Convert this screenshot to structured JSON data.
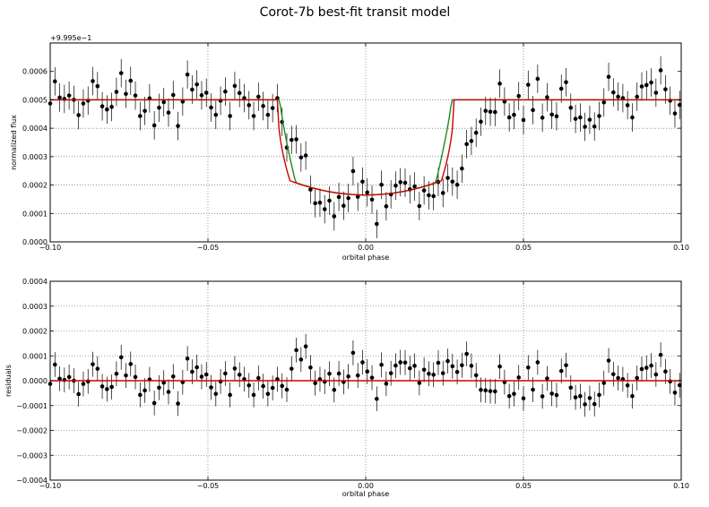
{
  "figure": {
    "title": "Corot-7b best-fit transit model",
    "offset_label": "+9.995e−1"
  },
  "colors": {
    "data": "#000000",
    "red_model": "#cc0000",
    "green_model": "#1f8a1f",
    "zero_line": "#cc0000",
    "grid": "#555555"
  },
  "chart_data": [
    {
      "type": "scatter",
      "title": "Corot-7b best-fit transit model",
      "xlabel": "orbital phase",
      "ylabel": "normalized flux",
      "offset": "+9.995e−1",
      "xlim": [
        -0.1,
        0.1
      ],
      "ylim": [
        0.0,
        0.0007
      ],
      "x_ticks": [
        -0.1,
        -0.05,
        0.0,
        0.05,
        0.1
      ],
      "x_tick_labels": [
        "−0.10",
        "−0.05",
        "0.00",
        "0.05",
        "0.10"
      ],
      "y_ticks": [
        0.0,
        0.0001,
        0.0002,
        0.0003,
        0.0004,
        0.0005,
        0.0006
      ],
      "y_tick_labels": [
        "0.0000",
        "0.0001",
        "0.0002",
        "0.0003",
        "0.0004",
        "0.0005",
        "0.0006"
      ],
      "grid": true,
      "model_params": {
        "baseline": 0.0005,
        "depth": 0.000335,
        "half_width": 0.028,
        "ingress": 0.004
      },
      "series": [
        {
          "type": "scatter",
          "x": [
            -0.1,
            -0.0985,
            -0.097,
            -0.0955,
            -0.094,
            -0.0925,
            -0.091,
            -0.0895,
            -0.088,
            -0.0865,
            -0.085,
            -0.0835,
            -0.082,
            -0.0805,
            -0.079,
            -0.0775,
            -0.076,
            -0.0745,
            -0.073,
            -0.0715,
            -0.07,
            -0.0685,
            -0.067,
            -0.0655,
            -0.064,
            -0.0625,
            -0.061,
            -0.0595,
            -0.058,
            -0.0565,
            -0.055,
            -0.0535,
            -0.052,
            -0.0505,
            -0.049,
            -0.0475,
            -0.046,
            -0.0445,
            -0.043,
            -0.0415,
            -0.04,
            -0.0385,
            -0.037,
            -0.0355,
            -0.034,
            -0.0325,
            -0.031,
            -0.0295,
            -0.028,
            -0.0265,
            -0.025,
            -0.0235,
            -0.022,
            -0.0205,
            -0.019,
            -0.0175,
            -0.016,
            -0.0145,
            -0.013,
            -0.0115,
            -0.01,
            -0.0085,
            -0.007,
            -0.0055,
            -0.004,
            -0.0025,
            -0.001,
            0.0005,
            0.002,
            0.0035,
            0.005,
            0.0065,
            0.008,
            0.0095,
            0.011,
            0.0125,
            0.014,
            0.0155,
            0.017,
            0.0185,
            0.02,
            0.0215,
            0.023,
            0.0245,
            0.026,
            0.0275,
            0.029,
            0.0305,
            0.032,
            0.0335,
            0.035,
            0.0365,
            0.038,
            0.0395,
            0.041,
            0.0425,
            0.044,
            0.0455,
            0.047,
            0.0485,
            0.05,
            0.0515,
            0.053,
            0.0545,
            0.056,
            0.0575,
            0.059,
            0.0605,
            0.062,
            0.0635,
            0.065,
            0.0665,
            0.068,
            0.0695,
            0.071,
            0.0725,
            0.074,
            0.0755,
            0.077,
            0.0785,
            0.08,
            0.0815,
            0.083,
            0.0845,
            0.086,
            0.0875,
            0.089,
            0.0905,
            0.092,
            0.0935,
            0.095,
            0.0965,
            0.098,
            0.0995
          ],
          "y": [
            0.000487,
            0.000565,
            0.000508,
            0.000503,
            0.000515,
            0.0005,
            0.000446,
            0.000487,
            0.000497,
            0.000566,
            0.000548,
            0.000477,
            0.000466,
            0.000475,
            0.000528,
            0.000594,
            0.000521,
            0.000567,
            0.000515,
            0.000443,
            0.000461,
            0.000505,
            0.00041,
            0.000472,
            0.000492,
            0.000455,
            0.000517,
            0.000408,
            0.000494,
            0.000589,
            0.000536,
            0.000554,
            0.000516,
            0.000525,
            0.000473,
            0.000447,
            0.000497,
            0.000529,
            0.000443,
            0.000549,
            0.000524,
            0.000506,
            0.000481,
            0.000443,
            0.000511,
            0.000478,
            0.000447,
            0.000471,
            0.000506,
            0.000422,
            0.000332,
            0.000359,
            0.000361,
            0.000297,
            0.000304,
            0.000184,
            0.000136,
            0.000138,
            0.000115,
            0.000145,
            9e-05,
            0.000158,
            0.000127,
            0.000154,
            0.000249,
            0.000159,
            0.000212,
            0.000174,
            0.000149,
            6.3e-05,
            0.000201,
            0.000125,
            0.000167,
            0.000198,
            0.00021,
            0.000208,
            0.000185,
            0.000195,
            0.000126,
            0.000181,
            0.000164,
            0.000161,
            0.000211,
            0.000172,
            0.000225,
            0.000212,
            0.000201,
            0.000258,
            0.000344,
            0.000355,
            0.000384,
            0.000423,
            0.000461,
            0.000458,
            0.000457,
            0.000557,
            0.000494,
            0.000438,
            0.000447,
            0.000513,
            0.000429,
            0.000553,
            0.000464,
            0.000574,
            0.000437,
            0.000509,
            0.000448,
            0.000442,
            0.000539,
            0.000562,
            0.000472,
            0.000433,
            0.000438,
            0.000405,
            0.00043,
            0.000406,
            0.000443,
            0.000491,
            0.000581,
            0.000526,
            0.000511,
            0.000506,
            0.000481,
            0.000438,
            0.000511,
            0.000547,
            0.000552,
            0.000561,
            0.000525,
            0.000604,
            0.000537,
            0.000497,
            0.000452,
            0.000482
          ],
          "yerr": 5e-05
        },
        {
          "type": "line",
          "name": "",
          "color": "#cc0000"
        },
        {
          "type": "line",
          "name": "",
          "color": "#1f8a1f"
        }
      ]
    },
    {
      "type": "scatter",
      "title": "",
      "xlabel": "orbital phase",
      "ylabel": "residuals",
      "xlim": [
        -0.1,
        0.1
      ],
      "ylim": [
        -0.0004,
        0.0004
      ],
      "x_ticks": [
        -0.1,
        -0.05,
        0.0,
        0.05,
        0.1
      ],
      "x_tick_labels": [
        "−0.10",
        "−0.05",
        "0.00",
        "0.05",
        "0.10"
      ],
      "y_ticks": [
        -0.0004,
        -0.0003,
        -0.0002,
        -0.0001,
        0.0,
        0.0001,
        0.0002,
        0.0003,
        0.0004
      ],
      "y_tick_labels": [
        "−0.0004",
        "−0.0003",
        "−0.0002",
        "−0.0001",
        "0.0000",
        "0.0001",
        "0.0002",
        "0.0003",
        "0.0004"
      ],
      "grid": true,
      "series": [
        {
          "type": "scatter",
          "x": [
            -0.1,
            -0.0985,
            -0.097,
            -0.0955,
            -0.094,
            -0.0925,
            -0.091,
            -0.0895,
            -0.088,
            -0.0865,
            -0.085,
            -0.0835,
            -0.082,
            -0.0805,
            -0.079,
            -0.0775,
            -0.076,
            -0.0745,
            -0.073,
            -0.0715,
            -0.07,
            -0.0685,
            -0.067,
            -0.0655,
            -0.064,
            -0.0625,
            -0.061,
            -0.0595,
            -0.058,
            -0.0565,
            -0.055,
            -0.0535,
            -0.052,
            -0.0505,
            -0.049,
            -0.0475,
            -0.046,
            -0.0445,
            -0.043,
            -0.0415,
            -0.04,
            -0.0385,
            -0.037,
            -0.0355,
            -0.034,
            -0.0325,
            -0.031,
            -0.0295,
            -0.028,
            -0.0265,
            -0.025,
            -0.0235,
            -0.022,
            -0.0205,
            -0.019,
            -0.0175,
            -0.016,
            -0.0145,
            -0.013,
            -0.0115,
            -0.01,
            -0.0085,
            -0.007,
            -0.0055,
            -0.004,
            -0.0025,
            -0.001,
            0.0005,
            0.002,
            0.0035,
            0.005,
            0.0065,
            0.008,
            0.0095,
            0.011,
            0.0125,
            0.014,
            0.0155,
            0.017,
            0.0185,
            0.02,
            0.0215,
            0.023,
            0.0245,
            0.026,
            0.0275,
            0.029,
            0.0305,
            0.032,
            0.0335,
            0.035,
            0.0365,
            0.038,
            0.0395,
            0.041,
            0.0425,
            0.044,
            0.0455,
            0.047,
            0.0485,
            0.05,
            0.0515,
            0.053,
            0.0545,
            0.056,
            0.0575,
            0.059,
            0.0605,
            0.062,
            0.0635,
            0.065,
            0.0665,
            0.068,
            0.0695,
            0.071,
            0.0725,
            0.074,
            0.0755,
            0.077,
            0.0785,
            0.08,
            0.0815,
            0.083,
            0.0845,
            0.086,
            0.0875,
            0.089,
            0.0905,
            0.092,
            0.0935,
            0.095,
            0.0965,
            0.098,
            0.0995
          ],
          "y": [
            -1.3e-05,
            6.5e-05,
            8e-06,
            3e-06,
            1.5e-05,
            0.0,
            -5.4e-05,
            -1.3e-05,
            -3e-06,
            6.6e-05,
            4.8e-05,
            -2.3e-05,
            -3.4e-05,
            -2.5e-05,
            2.8e-05,
            9.4e-05,
            2.1e-05,
            6.7e-05,
            1.5e-05,
            -5.7e-05,
            -3.9e-05,
            5e-06,
            -9e-05,
            -2.8e-05,
            -8e-06,
            -4.5e-05,
            1.7e-05,
            -9.2e-05,
            -6e-06,
            8.9e-05,
            3.6e-05,
            5.4e-05,
            1.6e-05,
            2.5e-05,
            -2.7e-05,
            -5.3e-05,
            -3e-06,
            2.9e-05,
            -5.7e-05,
            4.9e-05,
            2.4e-05,
            6e-06,
            -1.9e-05,
            -5.7e-05,
            1.1e-05,
            -2.2e-05,
            -5.3e-05,
            -2.9e-05,
            6e-06,
            -2.1e-05,
            -3.6e-05,
            4.8e-05,
            0.000123,
            8.5e-05,
            0.000138,
            5.3e-05,
            -1e-05,
            6e-06,
            -4e-06,
            2.8e-05,
            -3.7e-05,
            2.9e-05,
            -5e-06,
            1.7e-05,
            0.000112,
            2.1e-05,
            7.4e-05,
            3.7e-05,
            1.2e-05,
            -7.3e-05,
            6.4e-05,
            -1.2e-05,
            3e-05,
            6.1e-05,
            7.4e-05,
            7.3e-05,
            5e-05,
            6e-05,
            -9e-06,
            4.4e-05,
            2.8e-05,
            2.4e-05,
            7.2e-05,
            3e-05,
            7.9e-05,
            5.8e-05,
            3.5e-05,
            6.2e-05,
            0.000108,
            6e-05,
            2.2e-05,
            -3.7e-05,
            -3.9e-05,
            -4.2e-05,
            -4.3e-05,
            5.7e-05,
            -6e-06,
            -6.2e-05,
            -5.3e-05,
            1.3e-05,
            -7.1e-05,
            5.3e-05,
            -3.6e-05,
            7.4e-05,
            -6.3e-05,
            9e-06,
            -5.2e-05,
            -5.8e-05,
            3.9e-05,
            6.2e-05,
            -2.8e-05,
            -6.7e-05,
            -6.2e-05,
            -9.5e-05,
            -7e-05,
            -9.4e-05,
            -5.7e-05,
            -9e-06,
            8.1e-05,
            2.6e-05,
            1.1e-05,
            6e-06,
            -1.9e-05,
            -6.2e-05,
            1.1e-05,
            4.7e-05,
            5.2e-05,
            6.1e-05,
            2.5e-05,
            0.000104,
            3.7e-05,
            -3e-06,
            -4.8e-05,
            -1.8e-05
          ],
          "yerr": 5e-05
        },
        {
          "type": "line",
          "name": "",
          "color": "#cc0000",
          "y_constant": 0.0
        }
      ]
    }
  ]
}
